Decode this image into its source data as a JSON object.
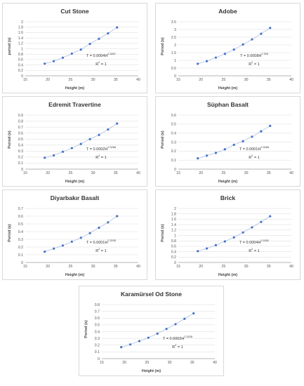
{
  "chart_data": [
    {
      "type": "scatter",
      "title": "Cut Stone",
      "xlabel": "Height (m)",
      "ylabel": "period (s)",
      "xlim": [
        15,
        40
      ],
      "ylim": [
        0,
        2
      ],
      "xticks": [
        "15",
        "20",
        "25",
        "30",
        "35",
        "40"
      ],
      "yticks": [
        "0",
        "0.2",
        "0.4",
        "0.6",
        "0.8",
        "1",
        "1.2",
        "1.4",
        "1.6",
        "1.8",
        "2"
      ],
      "x": [
        19.3,
        21.3,
        23.3,
        25.3,
        27.3,
        29.3,
        31.3,
        33.3,
        35.3
      ],
      "y": [
        0.45,
        0.54,
        0.67,
        0.82,
        0.97,
        1.18,
        1.37,
        1.57,
        1.79
      ],
      "equation": {
        "prefix": "T = 0.0004H",
        "exp": "2.3267",
        "r2_prefix": "R",
        "r2_exp": "2",
        "r2_suffix": " = 1"
      }
    },
    {
      "type": "scatter",
      "title": "Adobe",
      "xlabel": "Height (m)",
      "ylabel": "Period (s)",
      "xlim": [
        15,
        40
      ],
      "ylim": [
        0,
        3.5
      ],
      "xticks": [
        "15",
        "20",
        "25",
        "30",
        "35",
        "40"
      ],
      "yticks": [
        "0",
        "0.5",
        "1",
        "1.5",
        "2",
        "2.5",
        "3",
        "3.5"
      ],
      "x": [
        19.3,
        21.3,
        23.3,
        25.3,
        27.3,
        29.3,
        31.3,
        33.3,
        35.3
      ],
      "y": [
        0.78,
        0.95,
        1.18,
        1.42,
        1.7,
        2.03,
        2.36,
        2.72,
        3.1
      ],
      "equation": {
        "prefix": "T = 0.0008H",
        "exp": "2.326",
        "r2_prefix": "R",
        "r2_exp": "2",
        "r2_suffix": " = 1"
      }
    },
    {
      "type": "scatter",
      "title": "Edremit Travertine",
      "xlabel": "Height (m)",
      "ylabel": "Period (s)",
      "xlim": [
        15,
        40
      ],
      "ylim": [
        0,
        0.9
      ],
      "xticks": [
        "15",
        "20",
        "25",
        "30",
        "35",
        "40"
      ],
      "yticks": [
        "0",
        "0.1",
        "0.2",
        "0.3",
        "0.4",
        "0.5",
        "0.6",
        "0.7",
        "0.8",
        "0.9"
      ],
      "x": [
        19.3,
        21.3,
        23.3,
        25.3,
        27.3,
        29.3,
        31.3,
        33.3,
        35.3
      ],
      "y": [
        0.19,
        0.23,
        0.29,
        0.35,
        0.42,
        0.5,
        0.57,
        0.66,
        0.76
      ],
      "equation": {
        "prefix": "T = 0.0002H",
        "exp": "2.3268",
        "r2_prefix": "R",
        "r2_exp": "2",
        "r2_suffix": " = 1"
      }
    },
    {
      "type": "scatter",
      "title": "Süphan Basalt",
      "xlabel": "Height (m)",
      "ylabel": "Period (s)",
      "xlim": [
        15,
        40
      ],
      "ylim": [
        0,
        0.6
      ],
      "xticks": [
        "15",
        "20",
        "25",
        "30",
        "35",
        "40"
      ],
      "yticks": [
        "0",
        "0.1",
        "0.2",
        "0.3",
        "0.4",
        "0.5",
        "0.6"
      ],
      "x": [
        19.3,
        21.3,
        23.3,
        25.3,
        27.3,
        29.3,
        31.3,
        33.3,
        35.3
      ],
      "y": [
        0.12,
        0.15,
        0.18,
        0.22,
        0.27,
        0.31,
        0.36,
        0.42,
        0.48
      ],
      "equation": {
        "prefix": "T = 0.0001H",
        "exp": "2.3266",
        "r2_prefix": "R",
        "r2_exp": "2",
        "r2_suffix": " = 1"
      }
    },
    {
      "type": "scatter",
      "title": "Diyarbakır Basalt",
      "xlabel": "Height (m)",
      "ylabel": "Period (s)",
      "xlim": [
        15,
        40
      ],
      "ylim": [
        0,
        0.7
      ],
      "xticks": [
        "15",
        "20",
        "25",
        "30",
        "35",
        "40"
      ],
      "yticks": [
        "0",
        "0.1",
        "0.2",
        "0.3",
        "0.4",
        "0.5",
        "0.6",
        "0.7"
      ],
      "x": [
        19.3,
        21.3,
        23.3,
        25.3,
        27.3,
        29.3,
        31.3,
        33.3,
        35.3
      ],
      "y": [
        0.14,
        0.18,
        0.22,
        0.27,
        0.32,
        0.38,
        0.45,
        0.52,
        0.6
      ],
      "equation": {
        "prefix": "T = 0.0001H",
        "exp": "2.3245",
        "r2_prefix": "R",
        "r2_exp": "2",
        "r2_suffix": " = 1"
      }
    },
    {
      "type": "scatter",
      "title": "Brick",
      "xlabel": "Height (m)",
      "ylabel": "Period (s)",
      "xlim": [
        15,
        40
      ],
      "ylim": [
        0,
        2
      ],
      "xticks": [
        "15",
        "20",
        "25",
        "30",
        "35",
        "40"
      ],
      "yticks": [
        "0",
        "0.2",
        "0.4",
        "0.6",
        "0.8",
        "1",
        "1.2",
        "1.4",
        "1.6",
        "1.8",
        "2"
      ],
      "x": [
        19.3,
        21.3,
        23.3,
        25.3,
        27.3,
        29.3,
        31.3,
        33.3,
        35.3
      ],
      "y": [
        0.42,
        0.52,
        0.64,
        0.78,
        0.93,
        1.11,
        1.3,
        1.5,
        1.71
      ],
      "equation": {
        "prefix": "T = 0.0004H",
        "exp": "2.3252",
        "r2_prefix": "R",
        "r2_exp": "2",
        "r2_suffix": " = 1"
      }
    },
    {
      "type": "scatter",
      "title": "Karamürsel Od Stone",
      "xlabel": "Height (m)",
      "ylabel": "Period (s)",
      "xlim": [
        15,
        40
      ],
      "ylim": [
        0,
        0.8
      ],
      "xticks": [
        "15",
        "20",
        "25",
        "30",
        "35",
        "40"
      ],
      "yticks": [
        "0",
        "0.1",
        "0.2",
        "0.3",
        "0.4",
        "0.5",
        "0.6",
        "0.7",
        "0.8"
      ],
      "x": [
        19.3,
        21.3,
        23.3,
        25.3,
        27.3,
        29.3,
        31.3,
        33.3,
        35.3
      ],
      "y": [
        0.17,
        0.21,
        0.26,
        0.31,
        0.37,
        0.44,
        0.51,
        0.59,
        0.67
      ],
      "equation": {
        "prefix": "T = 0.0002H",
        "exp": "2.3228",
        "r2_prefix": "R",
        "r2_exp": "2",
        "r2_suffix": " = 1"
      }
    }
  ],
  "style": {
    "marker_color": "#4472c4",
    "trend_color": "#4472c4",
    "grid_color": "#d9d9d9",
    "axis_color": "#7f7f7f"
  }
}
